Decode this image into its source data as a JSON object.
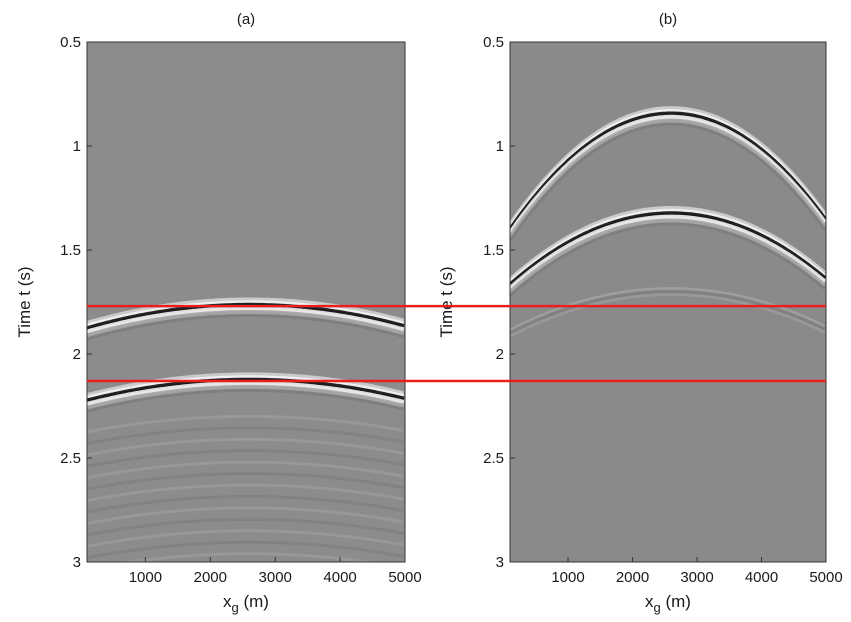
{
  "chart_data": [
    {
      "type": "heatmap",
      "title": "(a)",
      "xlabel": "x",
      "xlabel_subscript": "g",
      "xlabel_unit": " (m)",
      "ylabel": "Time t (s)",
      "xlim": [
        100,
        5000
      ],
      "ylim": [
        0.5,
        3
      ],
      "y_inverted": true,
      "xticks": [
        1000,
        2000,
        3000,
        4000,
        5000
      ],
      "yticks": [
        0.5,
        1,
        1.5,
        2,
        2.5,
        3
      ],
      "colormap": "gray",
      "events": [
        {
          "kind": "hyperbola",
          "apex_x": 2600,
          "apex_t": 1.76,
          "curvature": 1.8e-08,
          "polarity": "black-first"
        },
        {
          "kind": "hyperbola",
          "apex_x": 2600,
          "apex_t": 2.12,
          "curvature": 1.6e-08,
          "polarity": "black-first"
        },
        {
          "kind": "ringing",
          "apex_x": 2600,
          "from_t": 2.3,
          "to_t": 3.0,
          "note": "repeating faint arcs"
        }
      ]
    },
    {
      "type": "heatmap",
      "title": "(b)",
      "xlabel": "x",
      "xlabel_subscript": "g",
      "xlabel_unit": " (m)",
      "ylabel": "Time t (s)",
      "xlim": [
        100,
        5000
      ],
      "ylim": [
        0.5,
        3
      ],
      "y_inverted": true,
      "xticks": [
        1000,
        2000,
        3000,
        4000,
        5000
      ],
      "yticks": [
        0.5,
        1,
        1.5,
        2,
        2.5,
        3
      ],
      "colormap": "gray",
      "events": [
        {
          "kind": "hyperbola",
          "apex_x": 2600,
          "apex_t": 0.84,
          "curvature": 8.95e-08,
          "polarity": "black-first"
        },
        {
          "kind": "hyperbola",
          "apex_x": 2600,
          "apex_t": 1.32,
          "curvature": 5.5e-08,
          "polarity": "black-first"
        },
        {
          "kind": "hyperbola",
          "apex_x": 2600,
          "apex_t": 1.7,
          "curvature": 3.2e-08,
          "polarity": "faint"
        }
      ]
    }
  ],
  "overlay_lines": {
    "color": "#e8201c",
    "t_values": [
      1.77,
      2.13
    ],
    "spans": "both-panels"
  }
}
